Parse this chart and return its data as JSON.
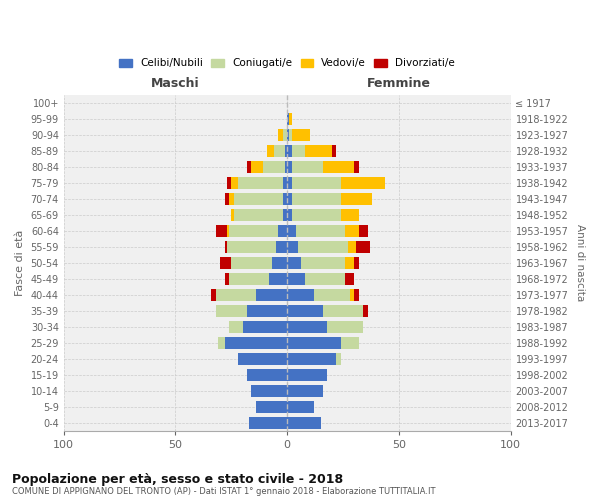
{
  "age_groups": [
    "0-4",
    "5-9",
    "10-14",
    "15-19",
    "20-24",
    "25-29",
    "30-34",
    "35-39",
    "40-44",
    "45-49",
    "50-54",
    "55-59",
    "60-64",
    "65-69",
    "70-74",
    "75-79",
    "80-84",
    "85-89",
    "90-94",
    "95-99",
    "100+"
  ],
  "birth_years": [
    "2013-2017",
    "2008-2012",
    "2003-2007",
    "1998-2002",
    "1993-1997",
    "1988-1992",
    "1983-1987",
    "1978-1982",
    "1973-1977",
    "1968-1972",
    "1963-1967",
    "1958-1962",
    "1953-1957",
    "1948-1952",
    "1943-1947",
    "1938-1942",
    "1933-1937",
    "1928-1932",
    "1923-1927",
    "1918-1922",
    "≤ 1917"
  ],
  "males": {
    "celibi": [
      17,
      14,
      16,
      18,
      22,
      28,
      20,
      18,
      14,
      8,
      7,
      5,
      4,
      2,
      2,
      2,
      1,
      1,
      0,
      0,
      0
    ],
    "coniugati": [
      0,
      0,
      0,
      0,
      0,
      3,
      6,
      14,
      18,
      18,
      18,
      22,
      22,
      22,
      22,
      20,
      10,
      5,
      2,
      0,
      0
    ],
    "vedovi": [
      0,
      0,
      0,
      0,
      0,
      0,
      0,
      0,
      0,
      0,
      0,
      0,
      1,
      1,
      2,
      3,
      5,
      3,
      2,
      0,
      0
    ],
    "divorziati": [
      0,
      0,
      0,
      0,
      0,
      0,
      0,
      0,
      2,
      2,
      5,
      1,
      5,
      0,
      2,
      2,
      2,
      0,
      0,
      0,
      0
    ]
  },
  "females": {
    "nubili": [
      15,
      12,
      16,
      18,
      22,
      24,
      18,
      16,
      12,
      8,
      6,
      5,
      4,
      2,
      2,
      2,
      2,
      2,
      1,
      1,
      0
    ],
    "coniugate": [
      0,
      0,
      0,
      0,
      2,
      8,
      16,
      18,
      16,
      18,
      20,
      22,
      22,
      22,
      22,
      22,
      14,
      6,
      1,
      0,
      0
    ],
    "vedove": [
      0,
      0,
      0,
      0,
      0,
      0,
      0,
      0,
      2,
      0,
      4,
      4,
      6,
      8,
      14,
      20,
      14,
      12,
      8,
      1,
      0
    ],
    "divorziate": [
      0,
      0,
      0,
      0,
      0,
      0,
      0,
      2,
      2,
      4,
      2,
      6,
      4,
      0,
      0,
      0,
      2,
      2,
      0,
      0,
      0
    ]
  },
  "color_celibi": "#4472c4",
  "color_coniugati": "#c5d9a0",
  "color_vedovi": "#ffc000",
  "color_divorziati": "#c00000",
  "xlim": [
    -100,
    100
  ],
  "xticks": [
    -100,
    -50,
    0,
    50,
    100
  ],
  "title": "Popolazione per età, sesso e stato civile - 2018",
  "subtitle": "COMUNE DI APPIGNANO DEL TRONTO (AP) - Dati ISTAT 1° gennaio 2018 - Elaborazione TUTTITALIA.IT",
  "ylabel_left": "Fasce di età",
  "ylabel_right": "Anni di nascita",
  "label_maschi": "Maschi",
  "label_femmine": "Femmine",
  "legend_labels": [
    "Celibi/Nubili",
    "Coniugati/e",
    "Vedovi/e",
    "Divorziati/e"
  ],
  "background_color": "#f0f0f0",
  "bar_height": 0.75
}
